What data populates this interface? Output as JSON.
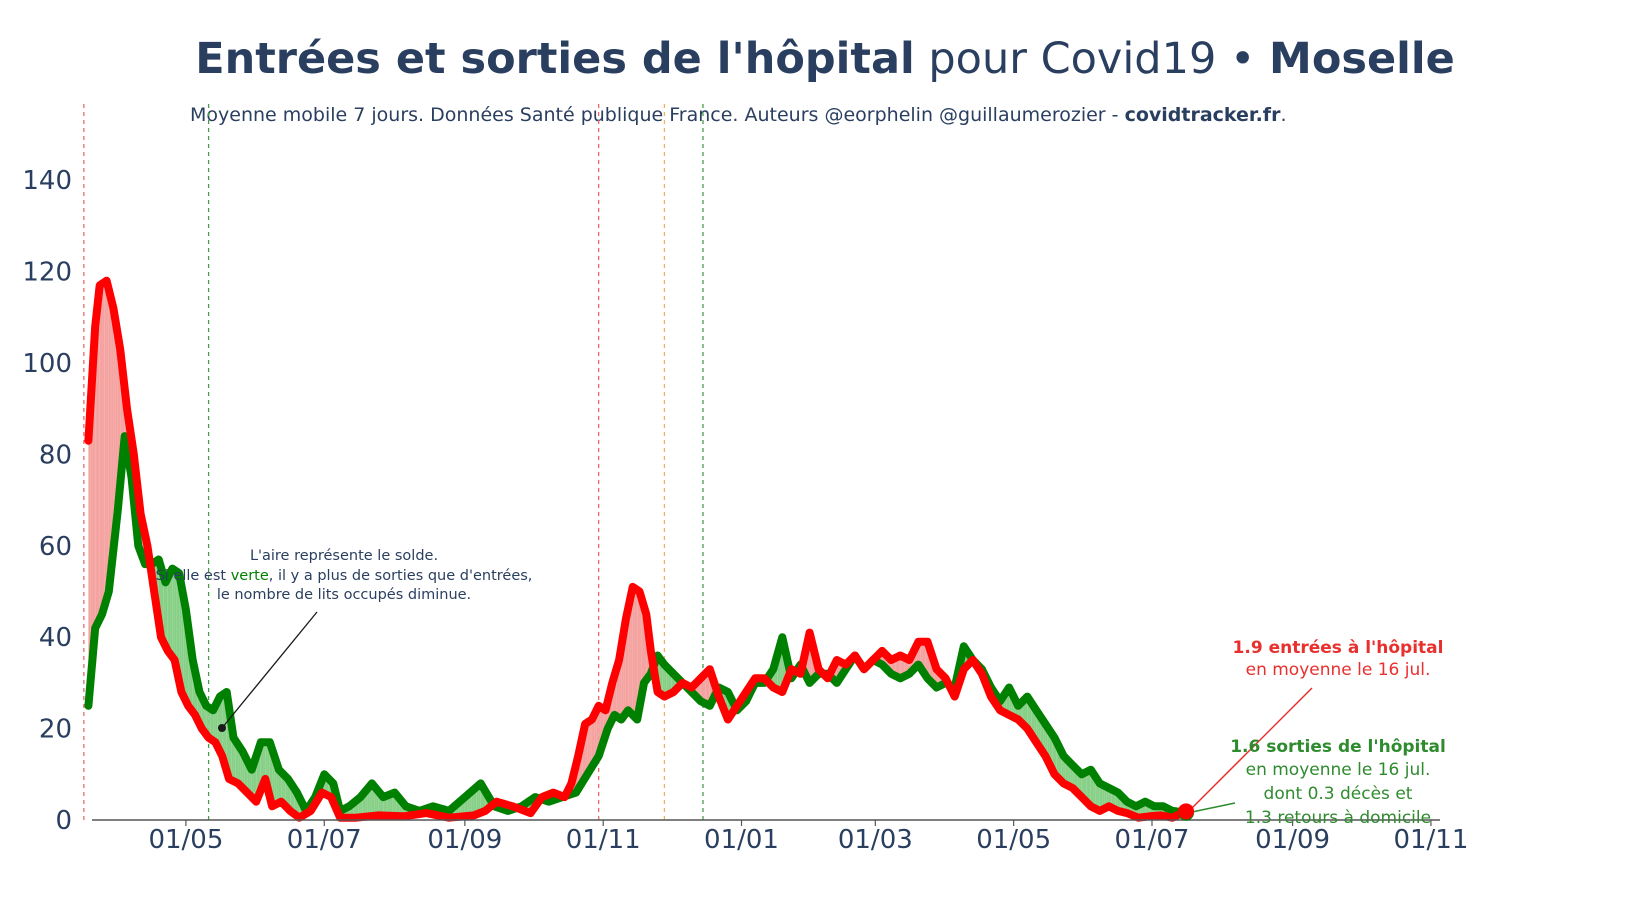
{
  "title": {
    "bold": "Entrées et sorties de l'hôpital",
    "regular": "pour Covid19",
    "separator": "•",
    "place": "Moselle"
  },
  "subtitle": {
    "text": "Moyenne mobile 7 jours. Données Santé publique France. Auteurs @eorphelin @guillaumerozier -",
    "site": "covidtracker.fr",
    "end": "."
  },
  "colors": {
    "entries": "#ff0000",
    "exits": "#008000",
    "fill_red": "#f4a3a0",
    "fill_green": "#88d088",
    "vline_red": "#e86a6a",
    "vline_green": "#4a9a4a",
    "vline_orange": "#f0b060",
    "text": "#2a3f5f"
  },
  "annotations": {
    "area_note": {
      "line1": "L'aire représente le solde.",
      "line2_pre": "Si elle est",
      "line2_green": "verte",
      "line2_post": ", il y a plus de sorties que d'entrées,",
      "line3": "le nombre de lits occupés diminue."
    },
    "entries_label": {
      "bold": "1.9 entrées à l'hôpital",
      "line2": "en moyenne le 16 jul."
    },
    "exits_label": {
      "bold": "1.6 sorties de l'hôpital",
      "line2": "en moyenne le 16 jul.",
      "line3": "dont 0.3 décès et",
      "line4": "1.3 retours à domicile"
    }
  },
  "chart_data": {
    "type": "line",
    "y_ticks": [
      0,
      20,
      40,
      60,
      80,
      100,
      120,
      140
    ],
    "ylim": [
      0,
      155
    ],
    "x_ticks": [
      {
        "label": "01/05",
        "date": "2020-05-01"
      },
      {
        "label": "01/07",
        "date": "2020-07-01"
      },
      {
        "label": "01/09",
        "date": "2020-09-01"
      },
      {
        "label": "01/11",
        "date": "2020-11-01"
      },
      {
        "label": "01/01",
        "date": "2021-01-01"
      },
      {
        "label": "01/03",
        "date": "2021-03-01"
      },
      {
        "label": "01/05",
        "date": "2021-05-01"
      },
      {
        "label": "01/07",
        "date": "2021-07-01"
      },
      {
        "label": "01/09",
        "date": "2021-09-01"
      },
      {
        "label": "01/11",
        "date": "2021-11-01"
      }
    ],
    "xlim": [
      "2020-03-10",
      "2021-11-05"
    ],
    "vertical_lines": [
      {
        "date": "2020-03-17",
        "color": "red"
      },
      {
        "date": "2020-05-11",
        "color": "green"
      },
      {
        "date": "2020-10-30",
        "color": "red"
      },
      {
        "date": "2020-11-28",
        "color": "orange"
      },
      {
        "date": "2020-12-15",
        "color": "green"
      }
    ],
    "series": [
      {
        "role": "entries",
        "points": [
          [
            "2020-03-19",
            83
          ],
          [
            "2020-03-22",
            108
          ],
          [
            "2020-03-24",
            117
          ],
          [
            "2020-03-27",
            118
          ],
          [
            "2020-03-30",
            112
          ],
          [
            "2020-04-02",
            103
          ],
          [
            "2020-04-05",
            90
          ],
          [
            "2020-04-08",
            80
          ],
          [
            "2020-04-11",
            67
          ],
          [
            "2020-04-14",
            60
          ],
          [
            "2020-04-17",
            50
          ],
          [
            "2020-04-20",
            40
          ],
          [
            "2020-04-23",
            37
          ],
          [
            "2020-04-26",
            35
          ],
          [
            "2020-04-29",
            28
          ],
          [
            "2020-05-02",
            25
          ],
          [
            "2020-05-05",
            23
          ],
          [
            "2020-05-08",
            20
          ],
          [
            "2020-05-11",
            18
          ],
          [
            "2020-05-14",
            17
          ],
          [
            "2020-05-17",
            14
          ],
          [
            "2020-05-20",
            9
          ],
          [
            "2020-05-24",
            8
          ],
          [
            "2020-05-28",
            6
          ],
          [
            "2020-06-01",
            4
          ],
          [
            "2020-06-05",
            9
          ],
          [
            "2020-06-08",
            3
          ],
          [
            "2020-06-12",
            4
          ],
          [
            "2020-06-16",
            2
          ],
          [
            "2020-06-20",
            0.5
          ],
          [
            "2020-06-25",
            2
          ],
          [
            "2020-06-30",
            6
          ],
          [
            "2020-07-04",
            5
          ],
          [
            "2020-07-08",
            0.5
          ],
          [
            "2020-07-15",
            0.5
          ],
          [
            "2020-07-25",
            1
          ],
          [
            "2020-08-05",
            0.8
          ],
          [
            "2020-08-15",
            1.5
          ],
          [
            "2020-08-25",
            0.5
          ],
          [
            "2020-09-05",
            1
          ],
          [
            "2020-09-10",
            2
          ],
          [
            "2020-09-15",
            4
          ],
          [
            "2020-09-22",
            3
          ],
          [
            "2020-09-30",
            1.5
          ],
          [
            "2020-10-05",
            5
          ],
          [
            "2020-10-10",
            6
          ],
          [
            "2020-10-15",
            5
          ],
          [
            "2020-10-18",
            8
          ],
          [
            "2020-10-21",
            14
          ],
          [
            "2020-10-24",
            21
          ],
          [
            "2020-10-27",
            22
          ],
          [
            "2020-10-30",
            25
          ],
          [
            "2020-11-02",
            24
          ],
          [
            "2020-11-05",
            30
          ],
          [
            "2020-11-08",
            35
          ],
          [
            "2020-11-11",
            44
          ],
          [
            "2020-11-14",
            51
          ],
          [
            "2020-11-17",
            50
          ],
          [
            "2020-11-20",
            45
          ],
          [
            "2020-11-22",
            37
          ],
          [
            "2020-11-25",
            28
          ],
          [
            "2020-11-28",
            27
          ],
          [
            "2020-12-02",
            28
          ],
          [
            "2020-12-06",
            30
          ],
          [
            "2020-12-10",
            29
          ],
          [
            "2020-12-14",
            31
          ],
          [
            "2020-12-18",
            33
          ],
          [
            "2020-12-22",
            27
          ],
          [
            "2020-12-26",
            22
          ],
          [
            "2020-12-30",
            25
          ],
          [
            "2021-01-03",
            28
          ],
          [
            "2021-01-07",
            31
          ],
          [
            "2021-01-11",
            31
          ],
          [
            "2021-01-15",
            29
          ],
          [
            "2021-01-19",
            28
          ],
          [
            "2021-01-23",
            33
          ],
          [
            "2021-01-27",
            32
          ],
          [
            "2021-01-31",
            41
          ],
          [
            "2021-02-04",
            33
          ],
          [
            "2021-02-08",
            31
          ],
          [
            "2021-02-12",
            35
          ],
          [
            "2021-02-16",
            34
          ],
          [
            "2021-02-20",
            36
          ],
          [
            "2021-02-24",
            33
          ],
          [
            "2021-02-28",
            35
          ],
          [
            "2021-03-04",
            37
          ],
          [
            "2021-03-08",
            35
          ],
          [
            "2021-03-12",
            36
          ],
          [
            "2021-03-16",
            35
          ],
          [
            "2021-03-20",
            39
          ],
          [
            "2021-03-24",
            39
          ],
          [
            "2021-03-28",
            33
          ],
          [
            "2021-04-01",
            31
          ],
          [
            "2021-04-05",
            27
          ],
          [
            "2021-04-09",
            33
          ],
          [
            "2021-04-13",
            35
          ],
          [
            "2021-04-17",
            32
          ],
          [
            "2021-04-21",
            27
          ],
          [
            "2021-04-25",
            24
          ],
          [
            "2021-04-29",
            23
          ],
          [
            "2021-05-03",
            22
          ],
          [
            "2021-05-07",
            20
          ],
          [
            "2021-05-11",
            17
          ],
          [
            "2021-05-15",
            14
          ],
          [
            "2021-05-19",
            10
          ],
          [
            "2021-05-23",
            8
          ],
          [
            "2021-05-27",
            7
          ],
          [
            "2021-05-31",
            5
          ],
          [
            "2021-06-04",
            3
          ],
          [
            "2021-06-08",
            2
          ],
          [
            "2021-06-12",
            3
          ],
          [
            "2021-06-16",
            2
          ],
          [
            "2021-06-20",
            1.5
          ],
          [
            "2021-06-25",
            0.5
          ],
          [
            "2021-06-30",
            0.8
          ],
          [
            "2021-07-05",
            1
          ],
          [
            "2021-07-10",
            0.5
          ],
          [
            "2021-07-16",
            1.9
          ]
        ]
      },
      {
        "role": "exits",
        "points": [
          [
            "2020-03-19",
            25
          ],
          [
            "2020-03-22",
            42
          ],
          [
            "2020-03-25",
            45
          ],
          [
            "2020-03-28",
            50
          ],
          [
            "2020-04-01",
            68
          ],
          [
            "2020-04-04",
            84
          ],
          [
            "2020-04-07",
            75
          ],
          [
            "2020-04-10",
            60
          ],
          [
            "2020-04-13",
            56
          ],
          [
            "2020-04-16",
            56
          ],
          [
            "2020-04-19",
            57
          ],
          [
            "2020-04-22",
            52
          ],
          [
            "2020-04-25",
            55
          ],
          [
            "2020-04-28",
            54
          ],
          [
            "2020-05-01",
            46
          ],
          [
            "2020-05-04",
            35
          ],
          [
            "2020-05-07",
            28
          ],
          [
            "2020-05-10",
            25
          ],
          [
            "2020-05-13",
            24
          ],
          [
            "2020-05-16",
            27
          ],
          [
            "2020-05-19",
            28
          ],
          [
            "2020-05-22",
            18
          ],
          [
            "2020-05-26",
            15
          ],
          [
            "2020-05-30",
            11
          ],
          [
            "2020-06-03",
            17
          ],
          [
            "2020-06-07",
            17
          ],
          [
            "2020-06-11",
            11
          ],
          [
            "2020-06-15",
            9
          ],
          [
            "2020-06-19",
            6
          ],
          [
            "2020-06-23",
            2
          ],
          [
            "2020-06-27",
            5
          ],
          [
            "2020-07-01",
            10
          ],
          [
            "2020-07-05",
            8
          ],
          [
            "2020-07-08",
            2
          ],
          [
            "2020-07-12",
            3
          ],
          [
            "2020-07-17",
            5
          ],
          [
            "2020-07-22",
            8
          ],
          [
            "2020-07-27",
            5
          ],
          [
            "2020-08-01",
            6
          ],
          [
            "2020-08-06",
            3
          ],
          [
            "2020-08-12",
            2
          ],
          [
            "2020-08-18",
            3
          ],
          [
            "2020-08-25",
            2
          ],
          [
            "2020-09-01",
            5
          ],
          [
            "2020-09-08",
            8
          ],
          [
            "2020-09-14",
            3
          ],
          [
            "2020-09-20",
            2
          ],
          [
            "2020-09-26",
            3
          ],
          [
            "2020-10-02",
            5
          ],
          [
            "2020-10-08",
            4
          ],
          [
            "2020-10-14",
            5
          ],
          [
            "2020-10-20",
            6
          ],
          [
            "2020-10-25",
            10
          ],
          [
            "2020-10-30",
            14
          ],
          [
            "2020-11-03",
            20
          ],
          [
            "2020-11-06",
            23
          ],
          [
            "2020-11-09",
            22
          ],
          [
            "2020-11-12",
            24
          ],
          [
            "2020-11-16",
            22
          ],
          [
            "2020-11-19",
            30
          ],
          [
            "2020-11-22",
            32
          ],
          [
            "2020-11-25",
            36
          ],
          [
            "2020-11-28",
            34
          ],
          [
            "2020-12-02",
            32
          ],
          [
            "2020-12-06",
            30
          ],
          [
            "2020-12-10",
            28
          ],
          [
            "2020-12-14",
            26
          ],
          [
            "2020-12-18",
            25
          ],
          [
            "2020-12-22",
            29
          ],
          [
            "2020-12-26",
            28
          ],
          [
            "2020-12-30",
            24
          ],
          [
            "2021-01-03",
            26
          ],
          [
            "2021-01-07",
            30
          ],
          [
            "2021-01-11",
            30
          ],
          [
            "2021-01-15",
            33
          ],
          [
            "2021-01-19",
            40
          ],
          [
            "2021-01-23",
            31
          ],
          [
            "2021-01-27",
            34
          ],
          [
            "2021-01-31",
            30
          ],
          [
            "2021-02-04",
            32
          ],
          [
            "2021-02-08",
            32
          ],
          [
            "2021-02-12",
            30
          ],
          [
            "2021-02-16",
            33
          ],
          [
            "2021-02-20",
            36
          ],
          [
            "2021-02-24",
            33
          ],
          [
            "2021-02-28",
            35
          ],
          [
            "2021-03-04",
            34
          ],
          [
            "2021-03-08",
            32
          ],
          [
            "2021-03-12",
            31
          ],
          [
            "2021-03-16",
            32
          ],
          [
            "2021-03-20",
            34
          ],
          [
            "2021-03-24",
            31
          ],
          [
            "2021-03-28",
            29
          ],
          [
            "2021-04-01",
            30
          ],
          [
            "2021-04-05",
            29
          ],
          [
            "2021-04-09",
            38
          ],
          [
            "2021-04-13",
            35
          ],
          [
            "2021-04-17",
            33
          ],
          [
            "2021-04-21",
            29
          ],
          [
            "2021-04-25",
            26
          ],
          [
            "2021-04-29",
            29
          ],
          [
            "2021-05-03",
            25
          ],
          [
            "2021-05-07",
            27
          ],
          [
            "2021-05-11",
            24
          ],
          [
            "2021-05-15",
            21
          ],
          [
            "2021-05-19",
            18
          ],
          [
            "2021-05-23",
            14
          ],
          [
            "2021-05-27",
            12
          ],
          [
            "2021-05-31",
            10
          ],
          [
            "2021-06-04",
            11
          ],
          [
            "2021-06-08",
            8
          ],
          [
            "2021-06-12",
            7
          ],
          [
            "2021-06-16",
            6
          ],
          [
            "2021-06-20",
            4
          ],
          [
            "2021-06-24",
            3
          ],
          [
            "2021-06-28",
            4
          ],
          [
            "2021-07-02",
            3
          ],
          [
            "2021-07-06",
            3
          ],
          [
            "2021-07-10",
            2
          ],
          [
            "2021-07-16",
            1.6
          ]
        ]
      }
    ]
  }
}
